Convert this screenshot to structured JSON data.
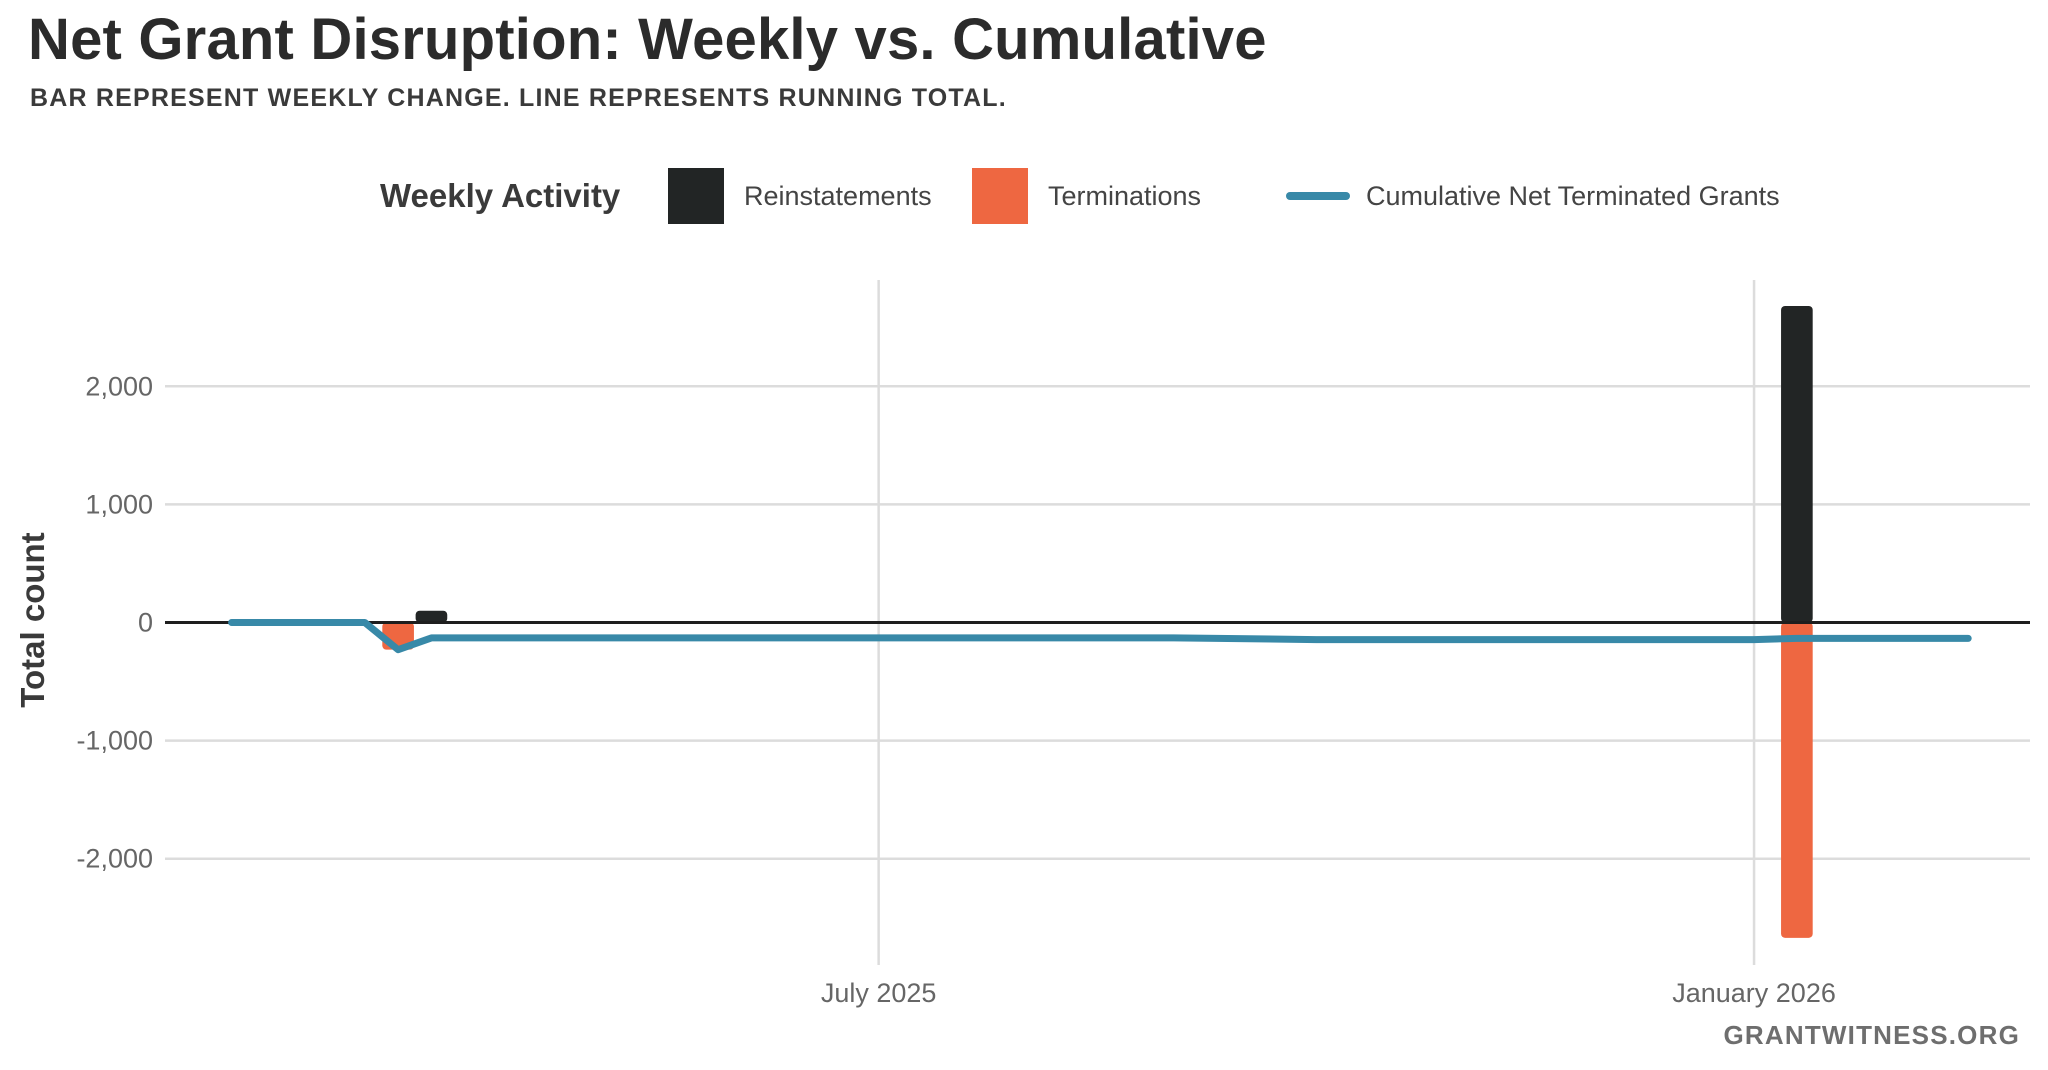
{
  "title": "Net Grant Disruption: Weekly vs. Cumulative",
  "subtitle": "BAR REPRESENT WEEKLY CHANGE. LINE REPRESENTS RUNNING TOTAL.",
  "source": "GRANTWITNESS.ORG",
  "chart_data": {
    "type": "bar",
    "ylabel": "Total count",
    "xlabel": "",
    "ylim": [
      -2900,
      2900
    ],
    "yticks": [
      -2000,
      -1000,
      0,
      1000,
      2000
    ],
    "ytick_labels": [
      "-2,000",
      "-1,000",
      "0",
      "1,000",
      "2,000"
    ],
    "xlim": [
      "2025-02-01",
      "2026-02-28"
    ],
    "xticks": [
      {
        "date": "2025-07-01",
        "label": "July 2025"
      },
      {
        "date": "2026-01-01",
        "label": "January 2026"
      }
    ],
    "grid": true,
    "zero_line": true,
    "legend": {
      "position": "top",
      "title": "Weekly Activity",
      "entries": [
        {
          "label": "Reinstatements",
          "shape": "square",
          "color": "#222525"
        },
        {
          "label": "Terminations",
          "shape": "square",
          "color": "#EE6741"
        },
        {
          "label": "Cumulative Net Terminated Grants",
          "shape": "line",
          "color": "#3889A8"
        }
      ]
    },
    "bars": [
      {
        "series": "Terminations",
        "date": "2025-03-22",
        "value": -230
      },
      {
        "series": "Reinstatements",
        "date": "2025-03-29",
        "value": 100
      },
      {
        "series": "Reinstatements",
        "date": "2026-01-10",
        "value": 2680
      },
      {
        "series": "Terminations",
        "date": "2026-01-10",
        "value": -2670
      }
    ],
    "line": {
      "name": "Cumulative Net Terminated Grants",
      "color": "#3889A8",
      "points": [
        {
          "date": "2025-02-15",
          "value": 0
        },
        {
          "date": "2025-03-15",
          "value": 0
        },
        {
          "date": "2025-03-22",
          "value": -230
        },
        {
          "date": "2025-03-29",
          "value": -130
        },
        {
          "date": "2025-06-01",
          "value": -130
        },
        {
          "date": "2025-09-01",
          "value": -130
        },
        {
          "date": "2025-10-01",
          "value": -145
        },
        {
          "date": "2026-01-01",
          "value": -145
        },
        {
          "date": "2026-01-10",
          "value": -135
        },
        {
          "date": "2026-02-15",
          "value": -135
        }
      ]
    }
  }
}
